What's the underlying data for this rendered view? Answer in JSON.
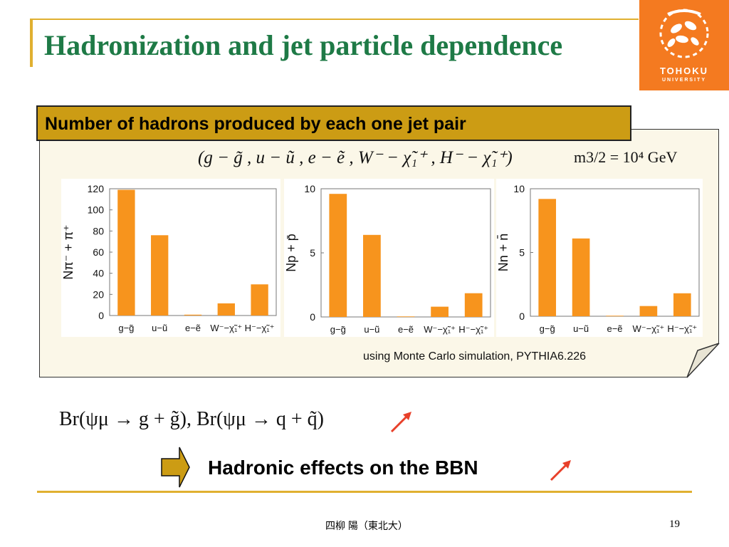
{
  "slide": {
    "title": "Hadronization and jet particle dependence",
    "logo": {
      "line1": "TOHOKU",
      "line2": "UNIVERSITY",
      "icon": "tohoku-leaf-crest"
    },
    "banner": "Number of hadrons produced by each one jet pair",
    "formula": "(g − g̃ , u − ũ , e − ẽ , W⁻ − χ̃₁⁺ , H⁻ − χ̃₁⁺)",
    "mass_setting": "m3/2 = 10⁴ GeV",
    "caption": "using Monte Carlo simulation, PYTHIA6.226",
    "branching": "Br(ψμ → g + g̃), Br(ψμ → q + q̃)",
    "hadronic_effects": "Hadronic effects on the BBN",
    "footer": "四柳 陽（東北大）",
    "page_number": "19"
  },
  "colors": {
    "title": "#1e7a46",
    "accent": "#e0b030",
    "banner": "#cc9c14",
    "bar": "#f7941d",
    "logo_bg": "#f47a20",
    "arrow": "#e8402a"
  },
  "chart_data": [
    {
      "type": "bar",
      "ylabel": "Nπ⁻ + π⁺",
      "categories": [
        "g−g̃",
        "u−ũ",
        "e−ẽ",
        "W⁻−χ̃₁⁺",
        "H⁻−χ̃₁⁺"
      ],
      "values": [
        119,
        76,
        0.8,
        11.5,
        29.5
      ],
      "ylim": [
        0,
        120
      ],
      "yticks": [
        "0",
        "20",
        "40",
        "60",
        "80",
        "100",
        "120"
      ]
    },
    {
      "type": "bar",
      "ylabel": "Np + p̄",
      "categories": [
        "g−g̃",
        "u−ũ",
        "e−ẽ",
        "W⁻−χ̃₁⁺",
        "H⁻−χ̃₁⁺"
      ],
      "values": [
        9.6,
        6.4,
        0.04,
        0.8,
        1.85
      ],
      "ylim": [
        0,
        10
      ],
      "yticks": [
        "0",
        "5",
        "10"
      ]
    },
    {
      "type": "bar",
      "ylabel": "Nn + n̄",
      "categories": [
        "g−g̃",
        "u−ũ",
        "e−ẽ",
        "W⁻−χ̃₁⁺",
        "H⁻−χ̃₁⁺"
      ],
      "values": [
        9.2,
        6.1,
        0.04,
        0.8,
        1.8
      ],
      "ylim": [
        0,
        10
      ],
      "yticks": [
        "0",
        "5",
        "10"
      ]
    }
  ]
}
